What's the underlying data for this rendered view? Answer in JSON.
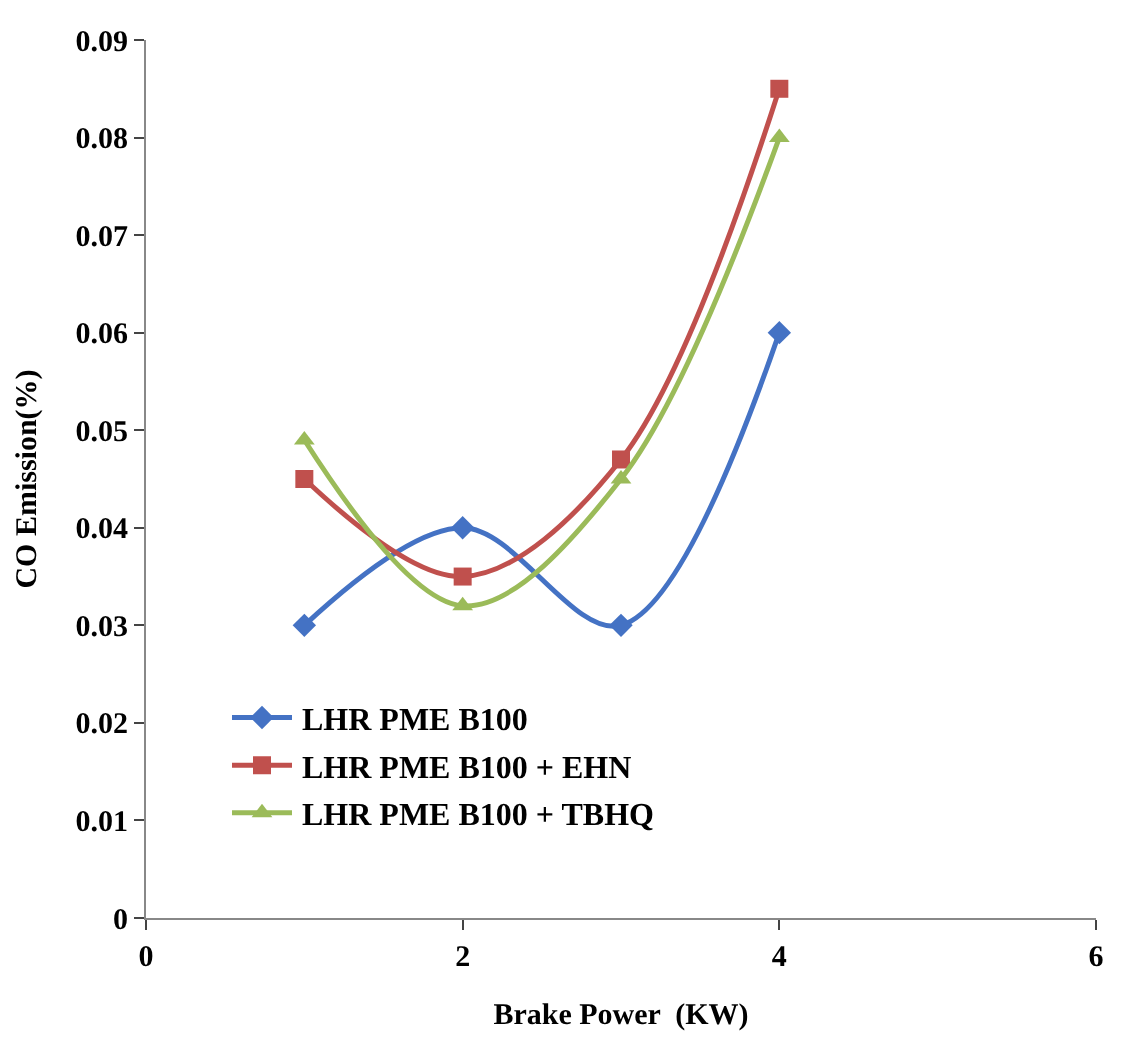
{
  "chart_data": {
    "type": "line",
    "xlabel": "Brake Power  (KW)",
    "ylabel": "CO Emission(%)",
    "x": [
      1,
      2,
      3,
      4
    ],
    "series": [
      {
        "name": "LHR PME B100",
        "color": "#4472c4",
        "marker": "diamond",
        "values": [
          0.03,
          0.04,
          0.03,
          0.06
        ]
      },
      {
        "name": "LHR PME B100 + EHN",
        "color": "#c0504d",
        "marker": "square",
        "values": [
          0.045,
          0.035,
          0.047,
          0.085
        ]
      },
      {
        "name": "LHR PME B100 + TBHQ",
        "color": "#9bbb59",
        "marker": "triangle",
        "values": [
          0.049,
          0.032,
          0.045,
          0.08
        ]
      }
    ],
    "xlim": [
      0,
      6
    ],
    "xticks": [
      0,
      2,
      4,
      6
    ],
    "ylim": [
      0,
      0.09
    ],
    "yticks": [
      0,
      0.01,
      0.02,
      0.03,
      0.04,
      0.05,
      0.06,
      0.07,
      0.08,
      0.09
    ],
    "legend": "bottom",
    "line_style": "solid"
  }
}
